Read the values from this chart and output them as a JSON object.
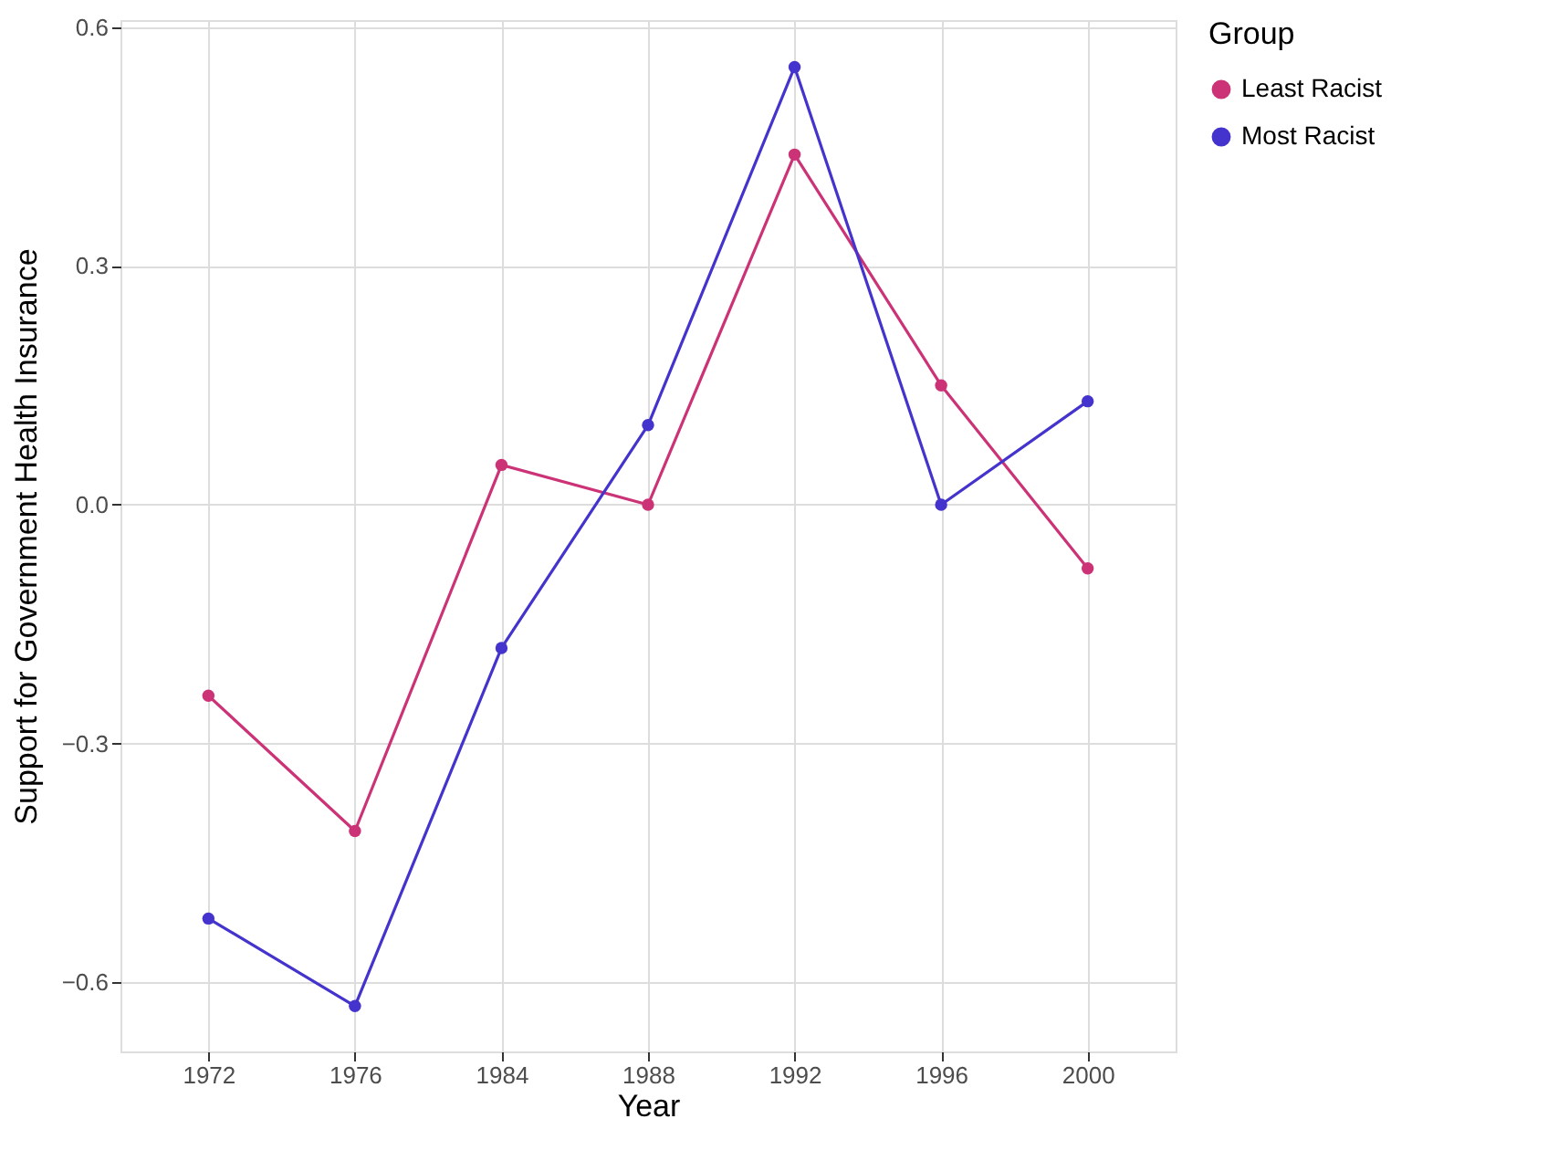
{
  "chart_data": {
    "type": "line",
    "xlabel": "Year",
    "ylabel": "Support for Government Health Insurance",
    "legend_title": "Group",
    "categories": [
      "1972",
      "1976",
      "1984",
      "1988",
      "1992",
      "1996",
      "2000"
    ],
    "series": [
      {
        "name": "Least Racist",
        "color": "#cc3377",
        "values": [
          -0.24,
          -0.41,
          0.05,
          0.0,
          0.44,
          0.15,
          -0.08
        ]
      },
      {
        "name": "Most Racist",
        "color": "#4433cc",
        "values": [
          -0.52,
          -0.63,
          -0.18,
          0.1,
          0.55,
          0.0,
          0.13
        ]
      }
    ],
    "ylim": [
      -0.687,
      0.609
    ],
    "yticks": [
      {
        "value": -0.6,
        "label": "−0.6"
      },
      {
        "value": -0.3,
        "label": "−0.3"
      },
      {
        "value": 0.0,
        "label": "0.0"
      },
      {
        "value": 0.3,
        "label": "0.3"
      },
      {
        "value": 0.6,
        "label": "0.6"
      }
    ],
    "grid": true,
    "legend": "right",
    "marker": "circle",
    "line_style": "solid"
  }
}
